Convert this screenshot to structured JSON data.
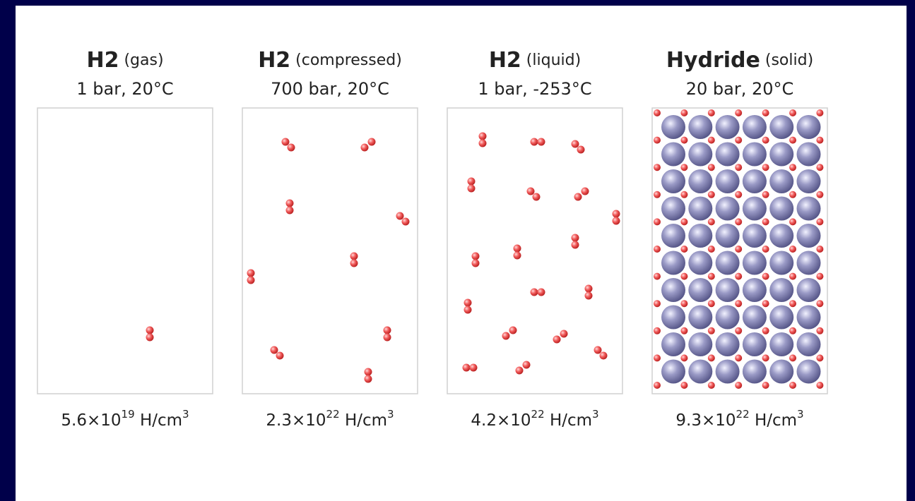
{
  "panels": [
    {
      "title": "H2",
      "state": "(gas)",
      "condition": "1 bar, 20°C",
      "density": {
        "mantissa": "5.6×10",
        "exponent": "19",
        "unit": "H/cm",
        "unit_exponent": "3"
      }
    },
    {
      "title": "H2",
      "state": "(compressed)",
      "condition": "700 bar, 20°C",
      "density": {
        "mantissa": "2.3×10",
        "exponent": "22",
        "unit": "H/cm",
        "unit_exponent": "3"
      }
    },
    {
      "title": "H2",
      "state": "(liquid)",
      "condition": "1 bar, -253°C",
      "density": {
        "mantissa": "4.2×10",
        "exponent": "22",
        "unit": "H/cm",
        "unit_exponent": "3"
      }
    },
    {
      "title": "Hydride",
      "state": "(solid)",
      "condition": "20 bar, 20°C",
      "density": {
        "mantissa": "9.3×10",
        "exponent": "22",
        "unit": "H/cm",
        "unit_exponent": "3"
      }
    }
  ]
}
